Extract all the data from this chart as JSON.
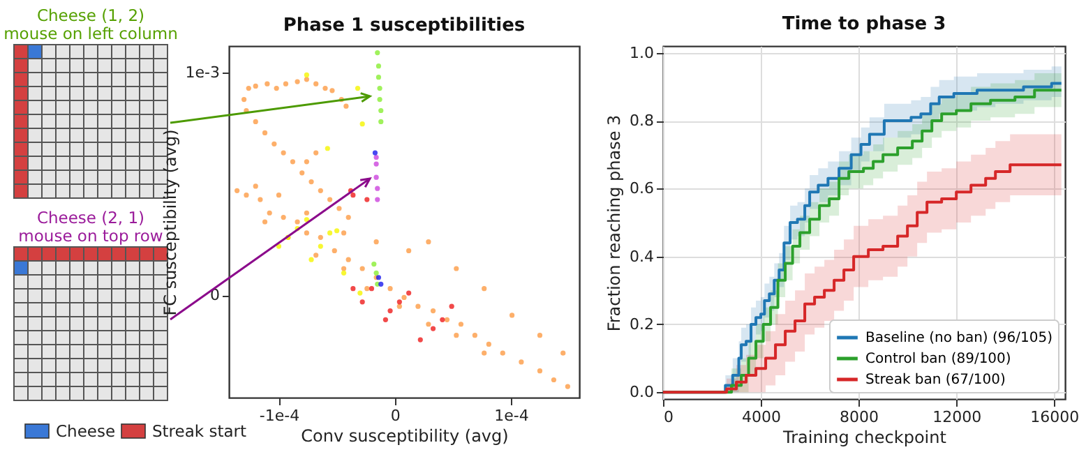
{
  "chart_data": [
    {
      "type": "scatter",
      "title": "Phase 1 susceptibilities",
      "xlabel": "Conv susceptibility (avg)",
      "ylabel": "FC susceptibility (avg)",
      "annotations": [
        "Cheese (1, 2)",
        "mouse on left column",
        "Cheese (2, 1)",
        "mouse on top row",
        "Cheese",
        "Streak start"
      ],
      "xlim": [
        -0.000143,
        0.000159
      ],
      "ylim": [
        -0.00046,
        0.00112
      ],
      "xticks": [
        {
          "value": -0.0001,
          "label": "-1e-4"
        },
        0,
        {
          "value": 0.0001,
          "label": "1e-4"
        }
      ],
      "yticks": [
        0,
        {
          "value": 0.001,
          "label": "1e-3"
        }
      ],
      "series": [
        {
          "color": "#fd9b45",
          "x": [
            -0.00013,
            -0.000126,
            -0.00012,
            -0.00011,
            -0.000102,
            -9.4e-05,
            -8.4e-05,
            -7.6e-05,
            -6.8e-05,
            -6e-05,
            -5.4e-05,
            -4.6e-05,
            -4.2e-05,
            -0.000128,
            -0.00012,
            -0.000112,
            -0.000104,
            -9.6e-05,
            -8.8e-05,
            -8e-05,
            -7.2e-05,
            -6.4e-05,
            -5.6e-05,
            -4.8e-05,
            -4e-05,
            -6.8e-05,
            -7.6e-05,
            -0.000136,
            -0.000128,
            -0.000116,
            -0.000108,
            -9.6e-05,
            -8.4e-05,
            -7.6e-05,
            -6.4e-05,
            -5.2e-05,
            -4e-05,
            -2.8e-05,
            -1.6e-05,
            -4e-06,
            8e-06,
            2e-05,
            3.3e-05,
            4.5e-05,
            5.7e-05,
            6.9e-05,
            8.1e-05,
            9.3e-05,
            0.000109,
            0.000125,
            0.000137,
            0.000149,
            -0.000112,
            -9.2e-05,
            -6.8e-05,
            -4.4e-05,
            -2.4e-05,
            4e-06,
            2.9e-05,
            5.3e-05,
            7.7e-05,
            -0.00012,
            -0.0001,
            -7.6e-05,
            -4.4e-05,
            -1.6e-05,
            1.2e-05,
            2.9e-05,
            5.3e-05,
            7.7e-05,
            0.000101,
            0.000125,
            0.000145
          ],
          "values": [
            0.00088,
            0.00093,
            0.00094,
            0.00095,
            0.00093,
            0.00095,
            0.00096,
            0.00097,
            0.00095,
            0.00093,
            0.00092,
            0.00088,
            0.00085,
            0.00083,
            0.00078,
            0.00073,
            0.00068,
            0.00064,
            0.0006,
            0.00055,
            0.00051,
            0.00047,
            0.00043,
            0.00039,
            0.00035,
            0.00064,
            0.0006,
            0.00047,
            0.00045,
            0.00043,
            0.00037,
            0.00035,
            0.00033,
            0.00028,
            0.00026,
            0.0002,
            0.00016,
            0.00012,
            8e-05,
            3e-05,
            -1e-05,
            -5e-05,
            -7e-05,
            -0.00011,
            -0.00013,
            -0.00018,
            -0.00022,
            -0.00026,
            -0.0003,
            -0.00034,
            -0.00038,
            -0.00041,
            0.00033,
            0.00026,
            0.00018,
            0.00012,
            3e-05,
            -5e-05,
            -0.00013,
            -0.00018,
            -0.00026,
            0.00049,
            0.00045,
            0.00037,
            0.00028,
            0.00024,
            0.0002,
            0.00024,
            0.00012,
            3e-05,
            -9e-05,
            -0.00018,
            -0.00026
          ]
        },
        {
          "color": "#f5f500",
          "x": [
            -0.0001,
            -9.2e-05,
            -8.4e-05,
            -7.6e-05,
            -7.2e-05,
            -6.4e-05,
            -5.6e-05,
            -5e-05,
            -3e-05,
            -7.6e-05,
            -3.2e-05,
            -2.8e-05,
            -5.8e-05,
            -4.4e-05
          ],
          "values": [
            0.00022,
            0.00026,
            0.0003,
            0.00034,
            0.00016,
            0.00022,
            0.00028,
            0.00029,
            1e-05,
            0.00099,
            0.00093,
            0.00077,
            0.00066,
            0.0001
          ]
        },
        {
          "color": "#ee1c1c",
          "x": [
            -3.6e-05,
            -2.8e-05,
            -2e-05,
            -8e-06,
            -4e-06,
            4e-06,
            1.2e-05,
            2.2e-05,
            3.3e-05,
            4.1e-05,
            4.9e-05,
            -3.6e-05,
            -2.4e-05,
            -3.8e-05
          ],
          "values": [
            3e-05,
            -3e-05,
            3e-05,
            -0.00011,
            -7e-05,
            -3e-05,
            1e-05,
            -0.0002,
            -0.00015,
            -0.00011,
            -5e-05,
            0.00045,
            0.00043,
            0.00047
          ]
        },
        {
          "color": "#88ee33",
          "x": [
            -1.5e-05,
            -1.4e-05,
            -1.4e-05,
            -1.3e-05,
            -1.3e-05,
            -1.2e-05,
            -1.2e-05,
            -1.8e-05,
            -1.6e-05,
            -1.5e-05
          ],
          "values": [
            0.00109,
            0.00103,
            0.00098,
            0.00093,
            0.00088,
            0.00083,
            0.00078,
            0.00014,
            0.0001,
            5e-05
          ]
        },
        {
          "color": "#cc44dd",
          "x": [
            -1.6e-05,
            -1.6e-05,
            -1.6e-05,
            -1.5e-05,
            -1.5e-05
          ],
          "values": [
            0.00062,
            0.00059,
            0.00053,
            0.00048,
            0.00043
          ]
        },
        {
          "color": "#1a1aee",
          "x": [
            -1.7e-05,
            -1.4e-05,
            -1.2e-05
          ],
          "values": [
            0.00064,
            8e-05,
            5e-05
          ]
        }
      ]
    },
    {
      "type": "step",
      "title": "Time to phase 3",
      "xlabel": "Training checkpoint",
      "ylabel": "Fraction reaching phase 3",
      "grid": true,
      "legend": "bottom right",
      "xlim": [
        0,
        16450
      ],
      "ylim": [
        -0.02,
        1.02
      ],
      "xticks": [
        0,
        4000,
        8000,
        12000,
        16000
      ],
      "yticks": [
        {
          "value": 0,
          "label": "0.0"
        },
        {
          "value": 0.2,
          "label": "0.2"
        },
        {
          "value": 0.4,
          "label": "0.4"
        },
        {
          "value": 0.6,
          "label": "0.6"
        },
        {
          "value": 0.8,
          "label": "0.8"
        },
        {
          "value": 1,
          "label": "1.0"
        }
      ],
      "series": [
        {
          "name": "Baseline (no ban) (96/105)",
          "color": "#1f77b4",
          "x": [
            0,
            2300,
            2550,
            2850,
            3100,
            3200,
            3400,
            3600,
            3800,
            4000,
            4150,
            4350,
            4550,
            4750,
            4950,
            5200,
            5500,
            5800,
            6000,
            6350,
            6750,
            7200,
            7700,
            8100,
            8450,
            9050,
            9800,
            10150,
            10550,
            10950,
            11300,
            11900,
            12850,
            13600,
            14750,
            15900,
            16300
          ],
          "values": [
            0,
            0,
            0.02,
            0.05,
            0.1,
            0.14,
            0.15,
            0.2,
            0.22,
            0.23,
            0.27,
            0.29,
            0.33,
            0.36,
            0.44,
            0.5,
            0.51,
            0.55,
            0.59,
            0.61,
            0.63,
            0.66,
            0.7,
            0.73,
            0.76,
            0.8,
            0.8,
            0.81,
            0.82,
            0.85,
            0.87,
            0.88,
            0.89,
            0.89,
            0.9,
            0.91,
            0.91
          ],
          "lower": [
            0,
            0,
            0,
            0,
            0.05,
            0.09,
            0.1,
            0.15,
            0.17,
            0.18,
            0.22,
            0.24,
            0.28,
            0.31,
            0.39,
            0.45,
            0.46,
            0.5,
            0.54,
            0.56,
            0.58,
            0.61,
            0.65,
            0.68,
            0.71,
            0.75,
            0.75,
            0.76,
            0.77,
            0.8,
            0.82,
            0.83,
            0.84,
            0.85,
            0.86,
            0.87,
            0.87
          ],
          "upper": [
            0,
            0,
            0.05,
            0.1,
            0.15,
            0.19,
            0.2,
            0.25,
            0.27,
            0.28,
            0.32,
            0.34,
            0.38,
            0.41,
            0.49,
            0.55,
            0.56,
            0.6,
            0.64,
            0.66,
            0.68,
            0.71,
            0.75,
            0.78,
            0.81,
            0.85,
            0.85,
            0.86,
            0.87,
            0.9,
            0.92,
            0.93,
            0.94,
            0.94,
            0.95,
            0.96,
            0.96
          ]
        },
        {
          "name": "Control ban (89/100)",
          "color": "#2ca02c",
          "x": [
            0,
            2500,
            2800,
            3200,
            3500,
            3800,
            4100,
            4400,
            4700,
            5000,
            5300,
            5600,
            6000,
            6400,
            6800,
            7200,
            7600,
            8200,
            8600,
            9000,
            9600,
            10200,
            10600,
            11000,
            11400,
            12000,
            12600,
            13400,
            14400,
            15200,
            16300
          ],
          "values": [
            0,
            0,
            0.02,
            0.05,
            0.1,
            0.15,
            0.2,
            0.25,
            0.33,
            0.38,
            0.43,
            0.47,
            0.51,
            0.55,
            0.57,
            0.63,
            0.65,
            0.66,
            0.68,
            0.7,
            0.72,
            0.74,
            0.77,
            0.8,
            0.82,
            0.83,
            0.85,
            0.86,
            0.87,
            0.89,
            0.89
          ],
          "lower": [
            0,
            0,
            0,
            0,
            0.05,
            0.1,
            0.15,
            0.2,
            0.28,
            0.33,
            0.38,
            0.42,
            0.46,
            0.5,
            0.52,
            0.58,
            0.6,
            0.61,
            0.63,
            0.65,
            0.67,
            0.69,
            0.72,
            0.75,
            0.77,
            0.78,
            0.8,
            0.81,
            0.82,
            0.84,
            0.84
          ],
          "upper": [
            0,
            0,
            0.07,
            0.1,
            0.15,
            0.2,
            0.25,
            0.3,
            0.38,
            0.43,
            0.48,
            0.52,
            0.56,
            0.6,
            0.62,
            0.68,
            0.7,
            0.71,
            0.73,
            0.75,
            0.77,
            0.79,
            0.82,
            0.85,
            0.87,
            0.88,
            0.9,
            0.91,
            0.92,
            0.94,
            0.94
          ]
        },
        {
          "name": "Streak ban (67/100)",
          "color": "#d62728",
          "x": [
            0,
            2200,
            2600,
            3000,
            3400,
            3800,
            4200,
            4600,
            5000,
            5400,
            5800,
            6200,
            6600,
            7000,
            7400,
            7800,
            8400,
            9000,
            9600,
            10000,
            10400,
            10800,
            11400,
            12000,
            12600,
            13200,
            13600,
            14200,
            16300
          ],
          "values": [
            0,
            0,
            0.01,
            0.03,
            0.05,
            0.07,
            0.1,
            0.14,
            0.18,
            0.21,
            0.26,
            0.28,
            0.3,
            0.33,
            0.36,
            0.4,
            0.42,
            0.43,
            0.46,
            0.49,
            0.53,
            0.56,
            0.57,
            0.59,
            0.61,
            0.63,
            0.65,
            0.67,
            0.67
          ],
          "lower": [
            0,
            0,
            0,
            0,
            0,
            0,
            0.02,
            0.05,
            0.09,
            0.12,
            0.17,
            0.19,
            0.21,
            0.24,
            0.27,
            0.31,
            0.33,
            0.34,
            0.37,
            0.4,
            0.44,
            0.47,
            0.48,
            0.5,
            0.52,
            0.54,
            0.56,
            0.58,
            0.58
          ],
          "upper": [
            0,
            0,
            0.04,
            0.08,
            0.11,
            0.14,
            0.18,
            0.23,
            0.27,
            0.3,
            0.35,
            0.37,
            0.39,
            0.42,
            0.45,
            0.49,
            0.51,
            0.52,
            0.55,
            0.58,
            0.62,
            0.65,
            0.66,
            0.68,
            0.7,
            0.72,
            0.74,
            0.76,
            0.76
          ]
        }
      ]
    }
  ]
}
